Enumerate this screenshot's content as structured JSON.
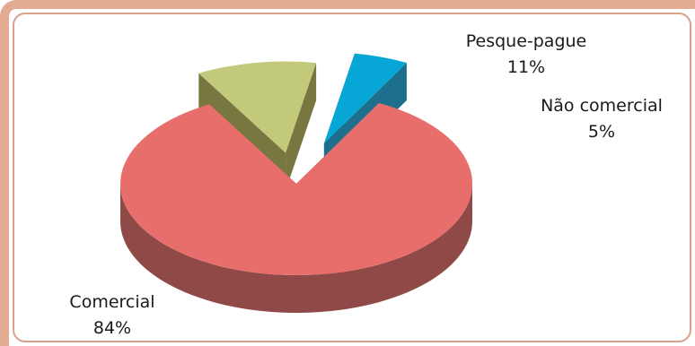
{
  "chart_data": {
    "type": "pie",
    "three_d": true,
    "exploded": true,
    "slices": [
      {
        "label": "Comercial",
        "value": 84,
        "value_label": "84%",
        "color": "#e76e6a",
        "side_color": "#8f4a48"
      },
      {
        "label": "Pesque-pague",
        "value": 11,
        "value_label": "11%",
        "color": "#c3c97a",
        "side_color": "#77773f"
      },
      {
        "label": "Não comercial",
        "value": 5,
        "value_label": "5%",
        "color": "#06a6d6",
        "side_color": "#1e6f8d"
      }
    ]
  }
}
